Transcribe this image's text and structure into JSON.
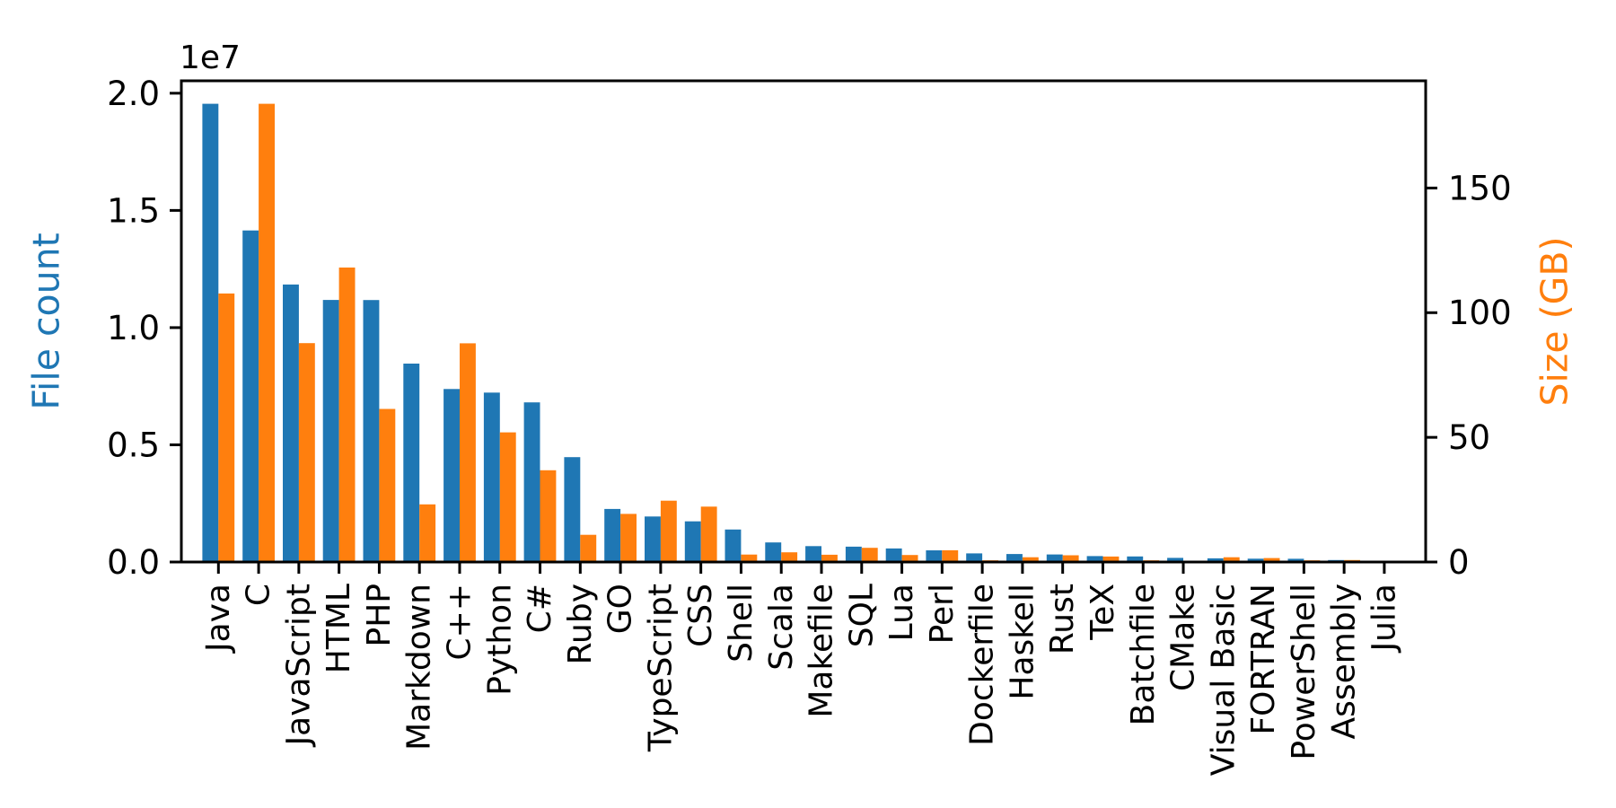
{
  "figure": {
    "background": "#ffffff",
    "frame_color": "#000000",
    "axis_left": {
      "label": "File count",
      "label_color": "#1f77b4",
      "offset_label": "1e7",
      "tick_labels": [
        "0.0",
        "0.5",
        "1.0",
        "1.5",
        "2.0"
      ],
      "tick_values": [
        0,
        5000000,
        10000000,
        15000000,
        20000000
      ]
    },
    "axis_right": {
      "label": "Size (GB)",
      "label_color": "#ff7f0e",
      "tick_labels": [
        "0",
        "50",
        "100",
        "150"
      ],
      "tick_values": [
        0,
        50,
        100,
        150
      ]
    }
  },
  "chart_data": {
    "type": "bar",
    "title": "",
    "xlabel": "",
    "ylabel_left": "File count",
    "ylabel_right": "Size (GB)",
    "grid": false,
    "legend_position": "none",
    "ylim_left": [
      0,
      20530000
    ],
    "ylim_right": [
      0,
      193
    ],
    "categories": [
      "Java",
      "C",
      "JavaScript",
      "HTML",
      "PHP",
      "Markdown",
      "C++",
      "Python",
      "C#",
      "Ruby",
      "GO",
      "TypeScript",
      "CSS",
      "Shell",
      "Scala",
      "Makefile",
      "SQL",
      "Lua",
      "Perl",
      "Dockerfile",
      "Haskell",
      "Rust",
      "TeX",
      "Batchfile",
      "CMake",
      "Visual Basic",
      "FORTRAN",
      "PowerShell",
      "Assembly",
      "Julia"
    ],
    "series": [
      {
        "name": "File count",
        "axis": "left",
        "color": "#1f77b4",
        "values": [
          19548190,
          14143113,
          11839883,
          11178557,
          11177610,
          8464626,
          7380520,
          7226626,
          6811652,
          4473331,
          2265436,
          1940406,
          1734406,
          1385648,
          835755,
          679430,
          656671,
          578554,
          497949,
          366505,
          340623,
          322431,
          251015,
          236945,
          175282,
          155652,
          142038,
          136846,
          82905,
          58317
        ]
      },
      {
        "name": "Size (GB)",
        "axis": "right",
        "color": "#ff7f0e",
        "values": [
          107.7,
          183.8,
          87.8,
          118.1,
          61.4,
          23.1,
          87.7,
          52.0,
          36.8,
          10.9,
          19.3,
          24.6,
          22.2,
          3.0,
          3.9,
          2.9,
          5.7,
          2.8,
          4.7,
          0.7,
          1.9,
          2.7,
          2.2,
          0.7,
          0.5,
          1.9,
          1.6,
          0.7,
          0.8,
          0.3
        ]
      }
    ]
  }
}
